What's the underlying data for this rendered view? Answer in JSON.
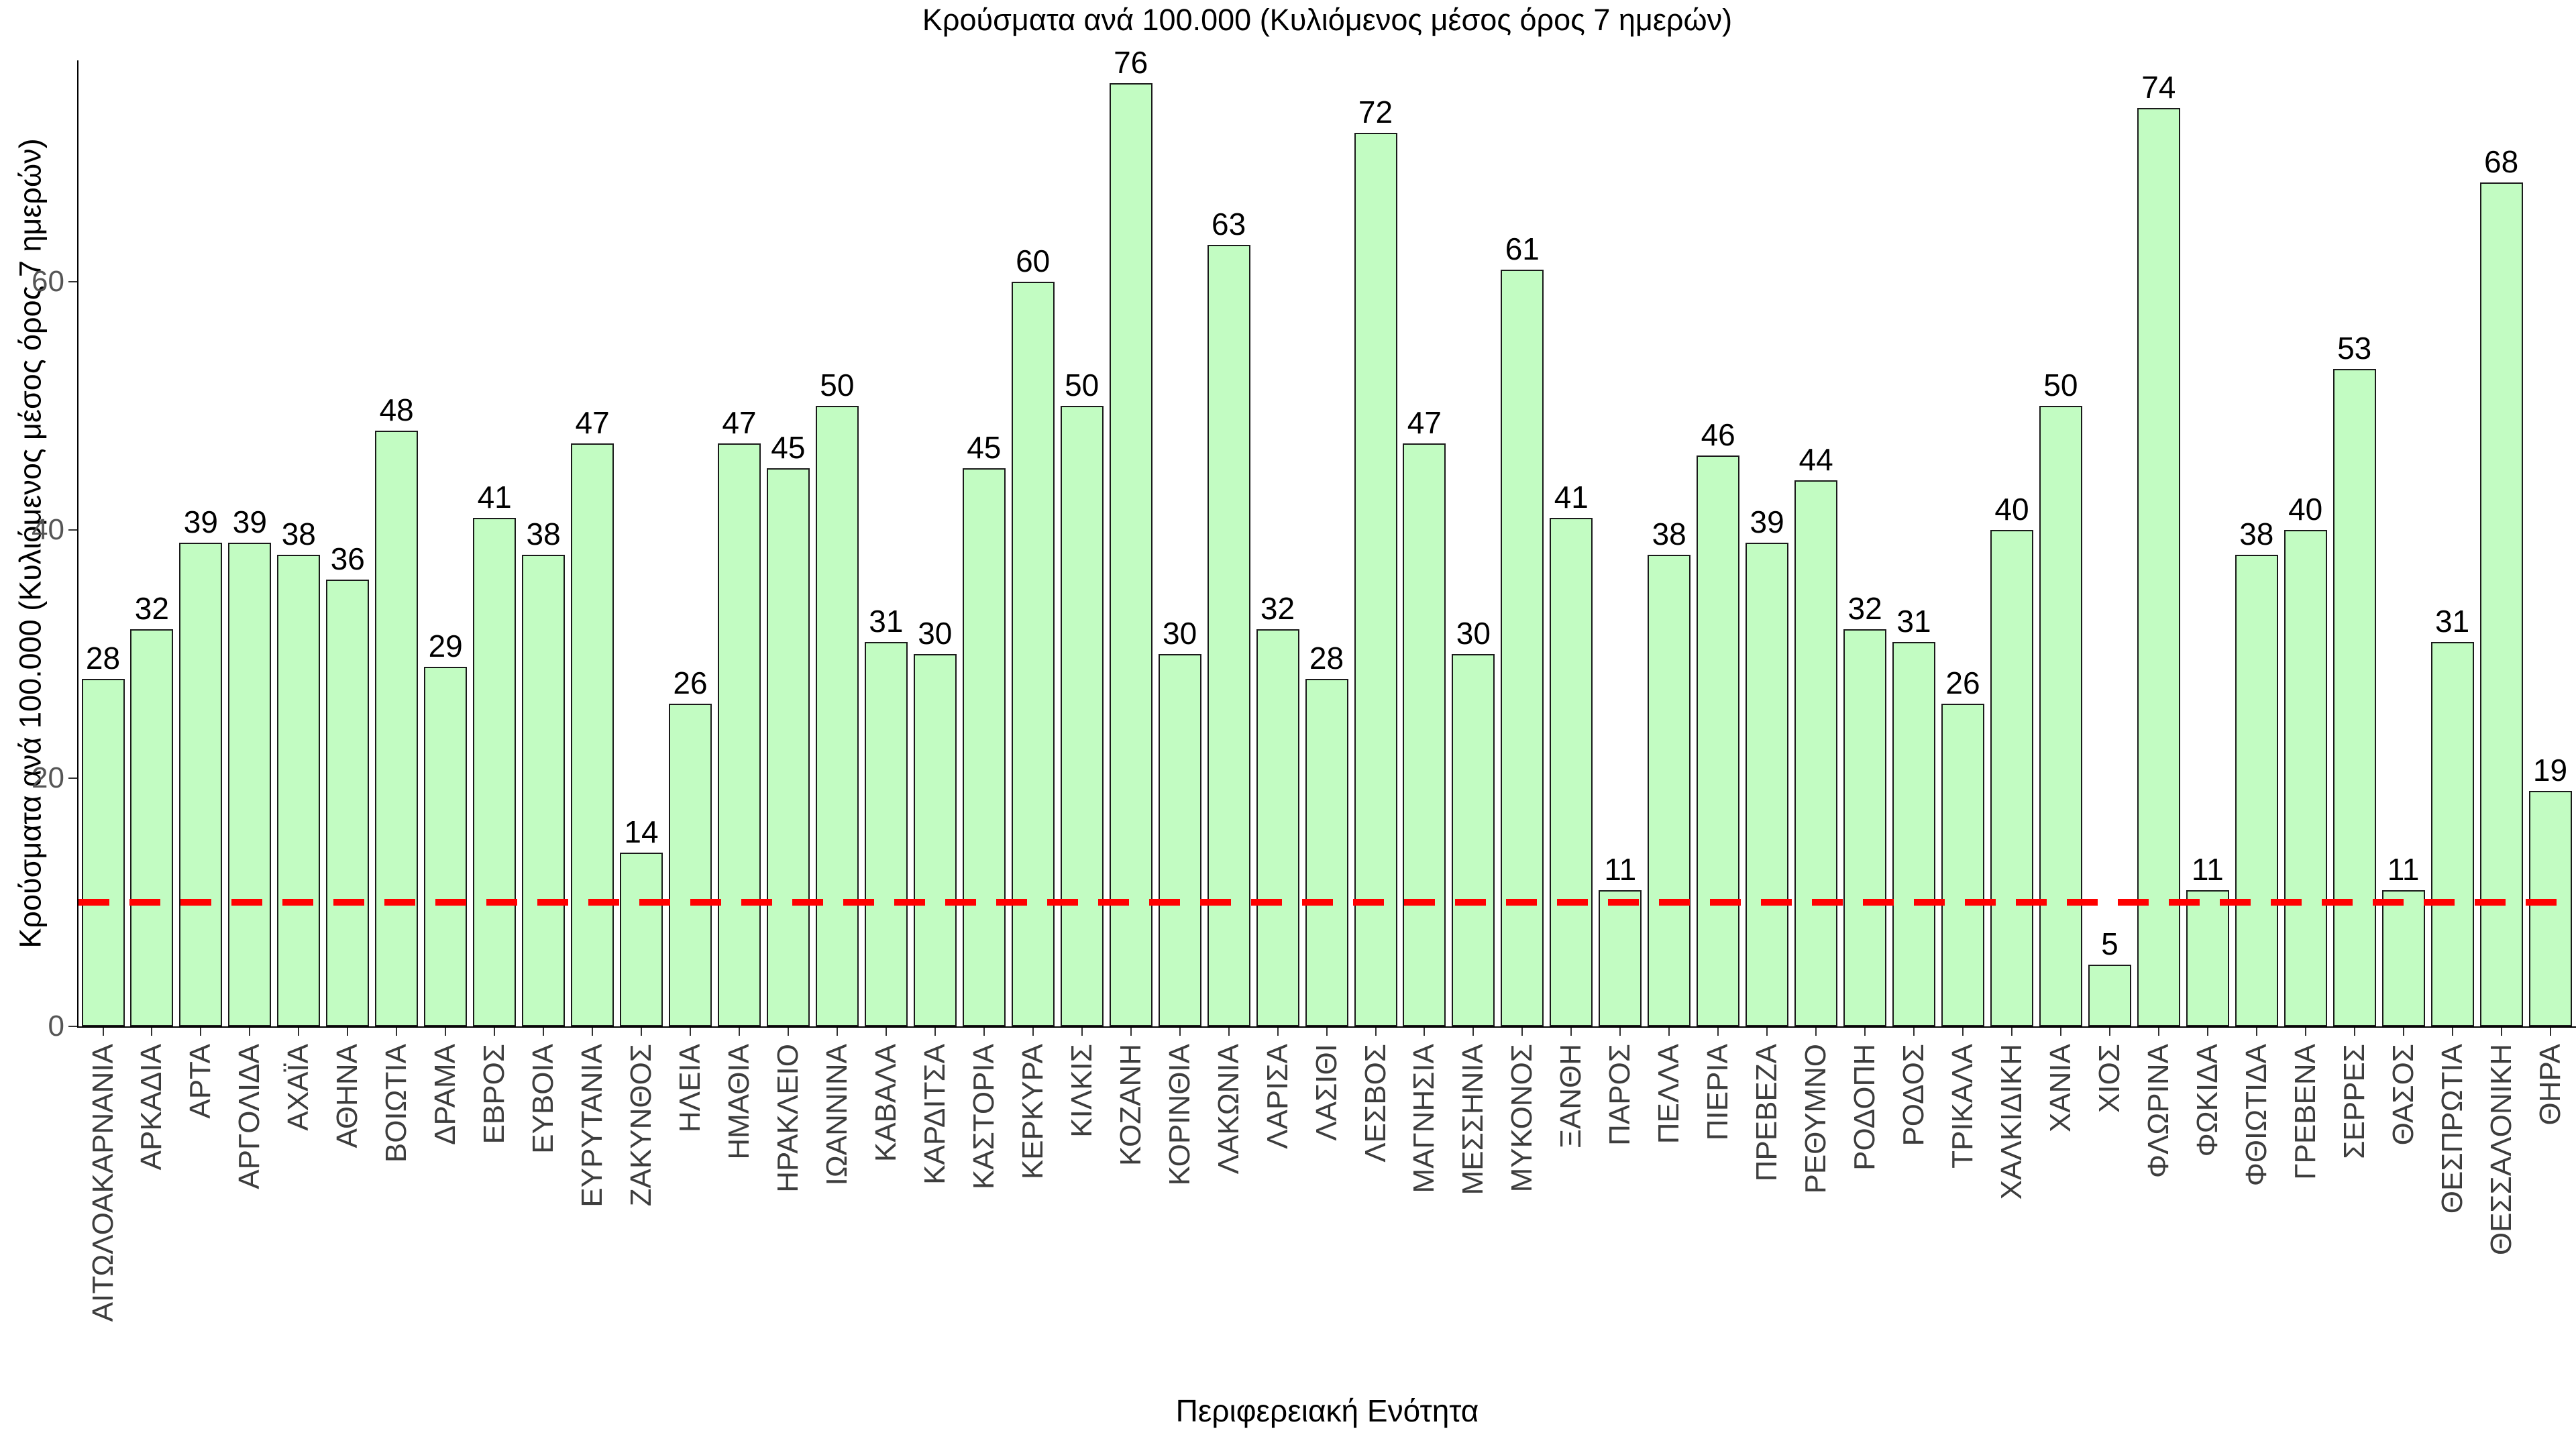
{
  "chart_data": {
    "type": "bar",
    "title": "Κρούσματα ανά 100.000 (Κυλιόμενος μέσος όρος 7 ημερών)",
    "xlabel": "Περιφερειακή Ενότητα",
    "ylabel": "Κρούσματα ανά 100.000 (Κυλιόμενος μέσος όρος 7 ημερών)",
    "categories": [
      "ΑΙΤΩΛΟΑΚΑΡΝΑΝΙΑ",
      "ΑΡΚΑΔΙΑ",
      "ΑΡΤΑ",
      "ΑΡΓΟΛΙΔΑ",
      "ΑΧΑΪΑ",
      "ΑΘΗΝΑ",
      "ΒΟΙΩΤΙΑ",
      "ΔΡΑΜΑ",
      "ΕΒΡΟΣ",
      "ΕΥΒΟΙΑ",
      "ΕΥΡΥΤΑΝΙΑ",
      "ΖΑΚΥΝΘΟΣ",
      "ΗΛΕΙΑ",
      "ΗΜΑΘΙΑ",
      "ΗΡΑΚΛΕΙΟ",
      "ΙΩΑΝΝΙΝΑ",
      "ΚΑΒΑΛΑ",
      "ΚΑΡΔΙΤΣΑ",
      "ΚΑΣΤΟΡΙΑ",
      "ΚΕΡΚΥΡΑ",
      "ΚΙΛΚΙΣ",
      "ΚΟΖΑΝΗ",
      "ΚΟΡΙΝΘΙΑ",
      "ΛΑΚΩΝΙΑ",
      "ΛΑΡΙΣΑ",
      "ΛΑΣΙΘΙ",
      "ΛΕΣΒΟΣ",
      "ΜΑΓΝΗΣΙΑ",
      "ΜΕΣΣΗΝΙΑ",
      "ΜΥΚΟΝΟΣ",
      "ΞΑΝΘΗ",
      "ΠΑΡΟΣ",
      "ΠΕΛΛΑ",
      "ΠΙΕΡΙΑ",
      "ΠΡΕΒΕΖΑ",
      "ΡΕΘΥΜΝΟ",
      "ΡΟΔΟΠΗ",
      "ΡΟΔΟΣ",
      "ΤΡΙΚΑΛΑ",
      "ΧΑΛΚΙΔΙΚΗ",
      "ΧΑΝΙΑ",
      "ΧΙΟΣ",
      "ΦΛΩΡΙΝΑ",
      "ΦΩΚΙΔΑ",
      "ΦΘΙΩΤΙΔΑ",
      "ΓΡΕΒΕΝΑ",
      "ΣΕΡΡΕΣ",
      "ΘΑΣΟΣ",
      "ΘΕΣΠΡΩΤΙΑ",
      "ΘΕΣΣΑΛΟΝΙΚΗ",
      "ΘΗΡΑ"
    ],
    "values": [
      28,
      32,
      39,
      39,
      38,
      36,
      48,
      29,
      41,
      38,
      47,
      14,
      26,
      47,
      45,
      50,
      31,
      30,
      45,
      60,
      50,
      76,
      30,
      63,
      32,
      28,
      72,
      47,
      30,
      61,
      41,
      11,
      38,
      46,
      39,
      44,
      32,
      31,
      26,
      40,
      50,
      5,
      74,
      11,
      38,
      40,
      53,
      11,
      31,
      68,
      19
    ],
    "yticks": [
      0,
      20,
      40,
      60
    ],
    "ylim": [
      0,
      80
    ],
    "grid": false,
    "legend": "none",
    "bar_fill_color": "#c2fcc2",
    "bar_edge_color": "#1a1a1a",
    "tick_label_color_x": "#3d3d3d",
    "tick_label_color_y": "#555555",
    "threshold_line": {
      "value": 10,
      "color": "#ff0000",
      "style": "dashed"
    }
  }
}
